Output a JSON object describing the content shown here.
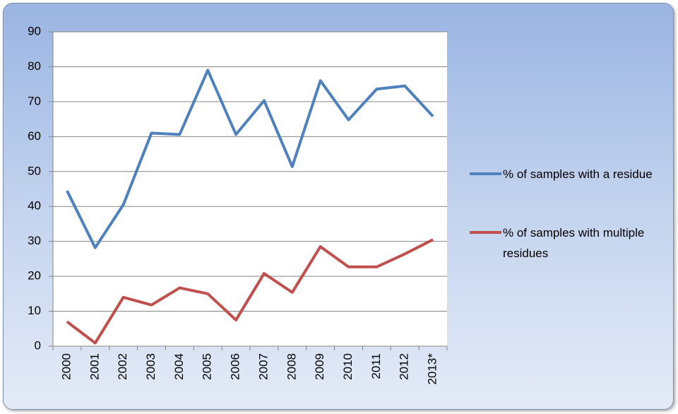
{
  "chart_data": {
    "type": "line",
    "categories": [
      "2000",
      "2001",
      "2002",
      "2003",
      "2004",
      "2005",
      "2006",
      "2007",
      "2008",
      "2009",
      "2010",
      "2011",
      "2012",
      "2013*"
    ],
    "series": [
      {
        "name": "% of samples with a residue",
        "color": "#4f81bd",
        "values": [
          44.5,
          28.2,
          40.5,
          61,
          60.6,
          79,
          60.6,
          70.3,
          51.4,
          76,
          64.8,
          73.6,
          74.5,
          65.8
        ]
      },
      {
        "name": "% of samples with multiple residues",
        "color": "#c0504d",
        "values": [
          7,
          0.9,
          14,
          11.8,
          16.7,
          15,
          7.5,
          20.8,
          15.4,
          28.5,
          22.7,
          22.7,
          26.4,
          30.5
        ]
      }
    ],
    "ylim": [
      0,
      90
    ],
    "yticks": [
      0,
      10,
      20,
      30,
      40,
      50,
      60,
      70,
      80,
      90
    ],
    "grid": true
  }
}
